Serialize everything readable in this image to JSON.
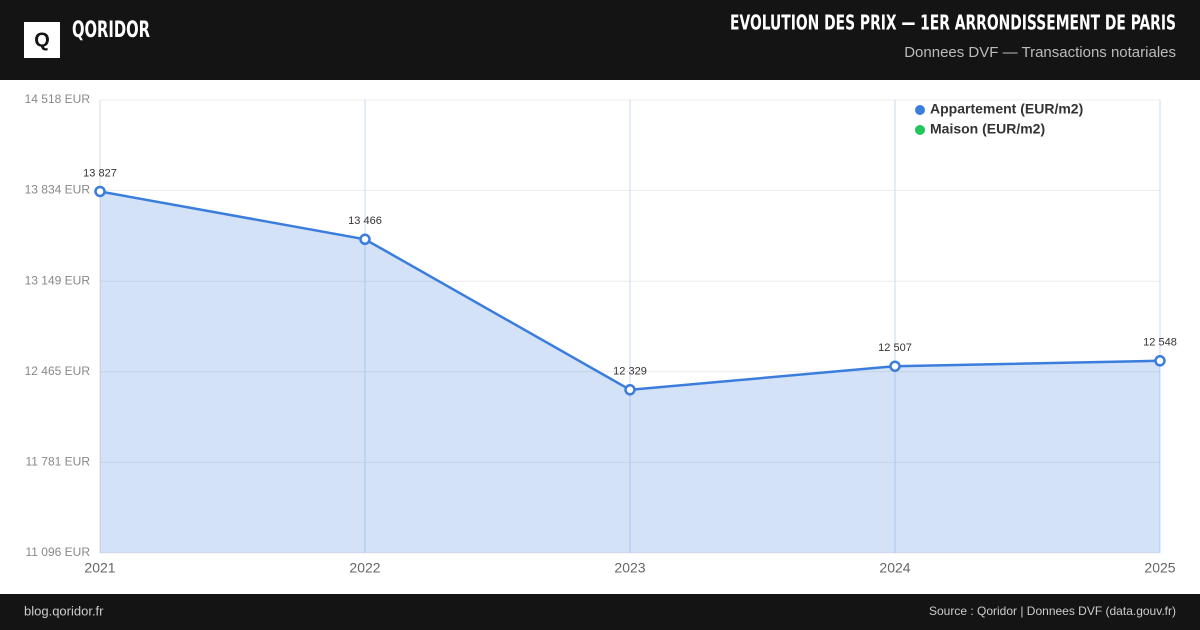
{
  "header": {
    "logo": "Q",
    "brand": "QORIDOR"
  },
  "footer": {
    "left": "blog.qoridor.fr",
    "right": "Source : Qoridor | Donnees DVF (data.gouv.fr)"
  },
  "chart_data": {
    "type": "area",
    "title": "EVOLUTION DES PRIX — 1ER ARRONDISSEMENT DE PARIS",
    "subtitle": "Donnees DVF — Transactions notariales",
    "categories": [
      "2021",
      "2022",
      "2023",
      "2024",
      "2025"
    ],
    "series": [
      {
        "name": "Appartement (EUR/m2)",
        "color": "#3b7ddd",
        "values": [
          13827,
          13466,
          12329,
          12507,
          12548
        ],
        "value_labels": [
          "13 827",
          "13 466",
          "12 329",
          "12 507",
          "12 548"
        ]
      },
      {
        "name": "Maison (EUR/m2)",
        "color": "#22c55e",
        "values": [
          null,
          null,
          null,
          null,
          null
        ]
      }
    ],
    "ylim": [
      11096,
      14518
    ],
    "yticks": [
      {
        "value": 14518,
        "label": "14 518 EUR"
      },
      {
        "value": 13834,
        "label": "13 834 EUR"
      },
      {
        "value": 13149,
        "label": "13 149 EUR"
      },
      {
        "value": 12465,
        "label": "12 465 EUR"
      },
      {
        "value": 11781,
        "label": "11 781 EUR"
      },
      {
        "value": 11096,
        "label": "11 096 EUR"
      }
    ],
    "grid": true,
    "legend": "top-right"
  }
}
